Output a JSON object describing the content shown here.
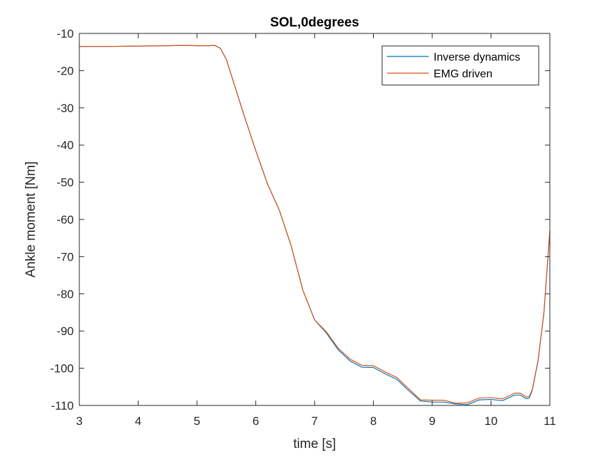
{
  "chart_data": {
    "type": "line",
    "title": "SOL,0degrees",
    "xlabel": "time  [s]",
    "ylabel": "Ankle moment [Nm]",
    "xlim": [
      3,
      11
    ],
    "ylim": [
      -110,
      -10
    ],
    "xticks": [
      3,
      4,
      5,
      6,
      7,
      8,
      9,
      10,
      11
    ],
    "yticks": [
      -10,
      -20,
      -30,
      -40,
      -50,
      -60,
      -70,
      -80,
      -90,
      -100,
      -110
    ],
    "grid": false,
    "legend_position": "top-right",
    "series": [
      {
        "name": "Inverse dynamics",
        "color": "#0072BD",
        "x": [
          3.0,
          3.5,
          4.0,
          4.5,
          4.8,
          5.0,
          5.2,
          5.3,
          5.4,
          5.5,
          5.6,
          5.8,
          6.0,
          6.2,
          6.4,
          6.6,
          6.8,
          7.0,
          7.2,
          7.4,
          7.6,
          7.8,
          8.0,
          8.2,
          8.4,
          8.6,
          8.8,
          9.0,
          9.2,
          9.4,
          9.6,
          9.8,
          10.0,
          10.2,
          10.4,
          10.5,
          10.6,
          10.65,
          10.7,
          10.8,
          10.9,
          11.0
        ],
        "y": [
          -13.5,
          -13.5,
          -13.4,
          -13.3,
          -13.2,
          -13.3,
          -13.3,
          -13.2,
          -14.0,
          -17.0,
          -22.0,
          -32.0,
          -41.5,
          -50.5,
          -57.5,
          -67.0,
          -79.0,
          -87.0,
          -90.5,
          -95.0,
          -98.0,
          -99.7,
          -99.8,
          -101.5,
          -103.0,
          -106.0,
          -108.8,
          -109.1,
          -109.1,
          -109.6,
          -109.8,
          -108.5,
          -108.4,
          -108.7,
          -107.2,
          -107.2,
          -108.2,
          -108.0,
          -106.0,
          -98.0,
          -85.0,
          -63.0
        ]
      },
      {
        "name": "EMG driven",
        "color": "#D95319",
        "x": [
          3.0,
          3.5,
          4.0,
          4.5,
          4.8,
          5.0,
          5.2,
          5.3,
          5.4,
          5.5,
          5.6,
          5.8,
          6.0,
          6.2,
          6.4,
          6.6,
          6.8,
          7.0,
          7.2,
          7.4,
          7.6,
          7.8,
          8.0,
          8.2,
          8.4,
          8.6,
          8.8,
          9.0,
          9.2,
          9.4,
          9.6,
          9.8,
          10.0,
          10.2,
          10.4,
          10.5,
          10.6,
          10.65,
          10.7,
          10.8,
          10.9,
          11.0
        ],
        "y": [
          -13.5,
          -13.5,
          -13.4,
          -13.3,
          -13.2,
          -13.3,
          -13.3,
          -13.2,
          -14.0,
          -17.0,
          -22.0,
          -32.0,
          -41.5,
          -50.5,
          -57.5,
          -67.0,
          -79.0,
          -87.0,
          -90.2,
          -94.6,
          -97.5,
          -99.2,
          -99.3,
          -101.0,
          -102.5,
          -105.5,
          -108.5,
          -108.6,
          -108.6,
          -109.4,
          -109.3,
          -108.0,
          -107.9,
          -108.2,
          -106.7,
          -106.7,
          -107.7,
          -107.6,
          -105.8,
          -97.8,
          -85.0,
          -63.0
        ]
      }
    ]
  }
}
